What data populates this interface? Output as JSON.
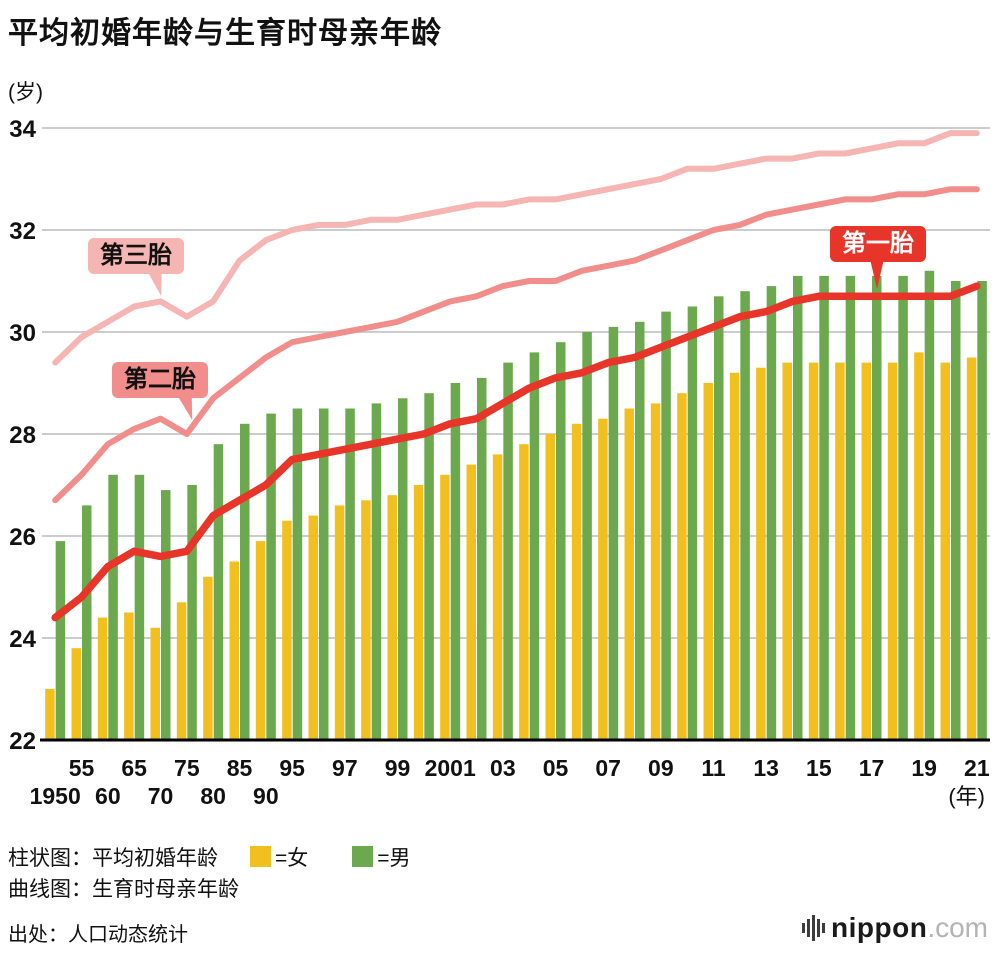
{
  "title": "平均初婚年龄与生育时母亲年龄",
  "y_axis_unit": "(岁)",
  "x_axis_unit": "(年)",
  "annotations": {
    "first_child": "第一胎",
    "second_child": "第二胎",
    "third_child": "第三胎"
  },
  "legend": {
    "bar_label": "柱状图：平均初婚年龄",
    "line_label": "曲线图：生育时母亲年龄",
    "female": "=女",
    "male": "=男"
  },
  "source": "出处：人口动态统计",
  "logo": {
    "name": "nippon",
    "tld": ".com"
  },
  "colors": {
    "female_bar": "#f2c01e",
    "male_bar": "#6ba84e",
    "first_child_line": "#e8352a",
    "second_child_line": "#f18e8c",
    "third_child_line": "#f5b5b3",
    "grid": "#cccccc",
    "axis": "#000000"
  },
  "chart_data": {
    "type": "bar",
    "title": "平均初婚年龄与生育时母亲年龄",
    "ylabel": "(岁)",
    "xlabel": "(年)",
    "ylim": [
      22,
      34
    ],
    "y_ticks": [
      22,
      24,
      26,
      28,
      30,
      32,
      34
    ],
    "grid": true,
    "categories": [
      1950,
      1955,
      1960,
      1965,
      1970,
      1975,
      1980,
      1985,
      1990,
      1995,
      1996,
      1997,
      1998,
      1999,
      2000,
      2001,
      2002,
      2003,
      2004,
      2005,
      2006,
      2007,
      2008,
      2009,
      2010,
      2011,
      2012,
      2013,
      2014,
      2015,
      2016,
      2017,
      2018,
      2019,
      2020,
      2021
    ],
    "x_ticks": [
      {
        "i": 0,
        "label": "1950",
        "row": 2
      },
      {
        "i": 1,
        "label": "55",
        "row": 1
      },
      {
        "i": 2,
        "label": "60",
        "row": 2
      },
      {
        "i": 3,
        "label": "65",
        "row": 1
      },
      {
        "i": 4,
        "label": "70",
        "row": 2
      },
      {
        "i": 5,
        "label": "75",
        "row": 1
      },
      {
        "i": 6,
        "label": "80",
        "row": 2
      },
      {
        "i": 7,
        "label": "85",
        "row": 1
      },
      {
        "i": 8,
        "label": "90",
        "row": 2
      },
      {
        "i": 9,
        "label": "95",
        "row": 1
      },
      {
        "i": 11,
        "label": "97",
        "row": 1
      },
      {
        "i": 13,
        "label": "99",
        "row": 1
      },
      {
        "i": 15,
        "label": "2001",
        "row": 1
      },
      {
        "i": 17,
        "label": "03",
        "row": 1
      },
      {
        "i": 19,
        "label": "05",
        "row": 1
      },
      {
        "i": 21,
        "label": "07",
        "row": 1
      },
      {
        "i": 23,
        "label": "09",
        "row": 1
      },
      {
        "i": 25,
        "label": "11",
        "row": 1
      },
      {
        "i": 27,
        "label": "13",
        "row": 1
      },
      {
        "i": 29,
        "label": "15",
        "row": 1
      },
      {
        "i": 31,
        "label": "17",
        "row": 1
      },
      {
        "i": 33,
        "label": "19",
        "row": 1
      },
      {
        "i": 35,
        "label": "21",
        "row": 1
      }
    ],
    "series": [
      {
        "key": "female",
        "name": "平均初婚年龄（女）",
        "type": "bar",
        "color": "#f2c01e",
        "values": [
          23.0,
          23.8,
          24.4,
          24.5,
          24.2,
          24.7,
          25.2,
          25.5,
          25.9,
          26.3,
          26.4,
          26.6,
          26.7,
          26.8,
          27.0,
          27.2,
          27.4,
          27.6,
          27.8,
          28.0,
          28.2,
          28.3,
          28.5,
          28.6,
          28.8,
          29.0,
          29.2,
          29.3,
          29.4,
          29.4,
          29.4,
          29.4,
          29.4,
          29.6,
          29.4,
          29.5
        ]
      },
      {
        "key": "male",
        "name": "平均初婚年龄（男）",
        "type": "bar",
        "color": "#6ba84e",
        "values": [
          25.9,
          26.6,
          27.2,
          27.2,
          26.9,
          27.0,
          27.8,
          28.2,
          28.4,
          28.5,
          28.5,
          28.5,
          28.6,
          28.7,
          28.8,
          29.0,
          29.1,
          29.4,
          29.6,
          29.8,
          30.0,
          30.1,
          30.2,
          30.4,
          30.5,
          30.7,
          30.8,
          30.9,
          31.1,
          31.1,
          31.1,
          31.1,
          31.1,
          31.2,
          31.0,
          31.0
        ]
      },
      {
        "key": "first_child",
        "name": "第一胎",
        "type": "line",
        "color": "#e8352a",
        "values": [
          24.4,
          24.8,
          25.4,
          25.7,
          25.6,
          25.7,
          26.4,
          26.7,
          27.0,
          27.5,
          27.6,
          27.7,
          27.8,
          27.9,
          28.0,
          28.2,
          28.3,
          28.6,
          28.9,
          29.1,
          29.2,
          29.4,
          29.5,
          29.7,
          29.9,
          30.1,
          30.3,
          30.4,
          30.6,
          30.7,
          30.7,
          30.7,
          30.7,
          30.7,
          30.7,
          30.9
        ]
      },
      {
        "key": "second_child",
        "name": "第二胎",
        "type": "line",
        "color": "#f18e8c",
        "values": [
          26.7,
          27.2,
          27.8,
          28.1,
          28.3,
          28.0,
          28.7,
          29.1,
          29.5,
          29.8,
          29.9,
          30.0,
          30.1,
          30.2,
          30.4,
          30.6,
          30.7,
          30.9,
          31.0,
          31.0,
          31.2,
          31.3,
          31.4,
          31.6,
          31.8,
          32.0,
          32.1,
          32.3,
          32.4,
          32.5,
          32.6,
          32.6,
          32.7,
          32.7,
          32.8,
          32.8
        ]
      },
      {
        "key": "third_child",
        "name": "第三胎",
        "type": "line",
        "color": "#f5b5b3",
        "values": [
          29.4,
          29.9,
          30.2,
          30.5,
          30.6,
          30.3,
          30.6,
          31.4,
          31.8,
          32.0,
          32.1,
          32.1,
          32.2,
          32.2,
          32.3,
          32.4,
          32.5,
          32.5,
          32.6,
          32.6,
          32.7,
          32.8,
          32.9,
          33.0,
          33.2,
          33.2,
          33.3,
          33.4,
          33.4,
          33.5,
          33.5,
          33.6,
          33.7,
          33.7,
          33.9,
          33.9
        ]
      }
    ],
    "legend_position": "bottom"
  }
}
